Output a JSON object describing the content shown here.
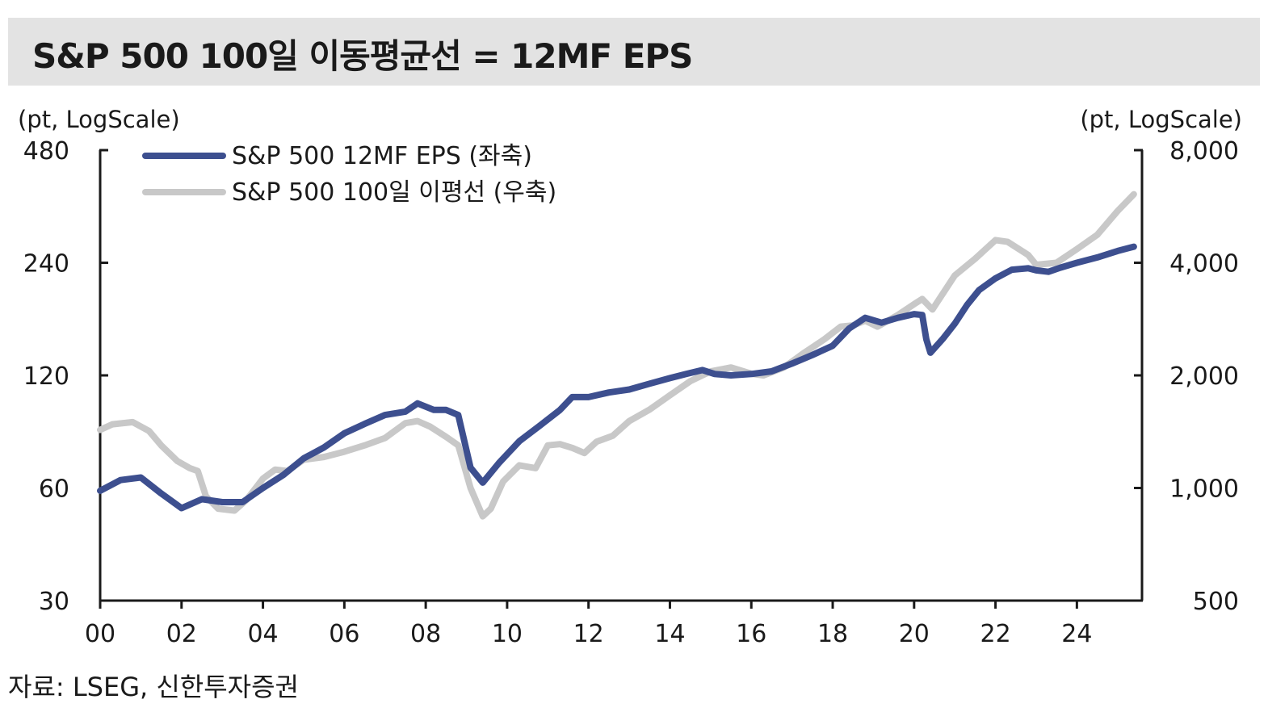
{
  "header": {
    "title": "S&P 500 100일 이동평균선 = 12MF EPS"
  },
  "footer": {
    "source": "자료: LSEG, 신한투자증권"
  },
  "colors": {
    "eps": "#3d4f8f",
    "ma": "#c8c8c8",
    "axis": "#1a1a1a",
    "title_bg": "#e3e3e3"
  },
  "chart_data": {
    "type": "line",
    "left_unit": "(pt, LogScale)",
    "right_unit": "(pt, LogScale)",
    "left_ticks": [
      "480",
      "240",
      "120",
      "60",
      "30"
    ],
    "left_tick_values": [
      480,
      240,
      120,
      60,
      30
    ],
    "right_ticks": [
      "8,000",
      "4,000",
      "2,000",
      "1,000",
      "500"
    ],
    "right_tick_values": [
      8000,
      4000,
      2000,
      1000,
      500
    ],
    "left_range": [
      30,
      480
    ],
    "right_range": [
      500,
      8000
    ],
    "scale": "log",
    "x_range": [
      2000,
      2025.6
    ],
    "x_ticks": [
      "00",
      "02",
      "04",
      "06",
      "08",
      "10",
      "12",
      "14",
      "16",
      "18",
      "20",
      "22",
      "24"
    ],
    "x_tick_values": [
      2000,
      2002,
      2004,
      2006,
      2008,
      2010,
      2012,
      2014,
      2016,
      2018,
      2020,
      2022,
      2024
    ],
    "series": [
      {
        "name": "S&P 500 12MF EPS (좌축)",
        "axis": "left",
        "x": [
          2000.0,
          2000.5,
          2001.0,
          2001.5,
          2002.0,
          2002.5,
          2003.0,
          2003.5,
          2004.0,
          2004.5,
          2005.0,
          2005.5,
          2006.0,
          2006.5,
          2007.0,
          2007.5,
          2007.8,
          2008.2,
          2008.5,
          2008.8,
          2009.1,
          2009.4,
          2009.8,
          2010.3,
          2010.8,
          2011.3,
          2011.6,
          2012.0,
          2012.5,
          2013.0,
          2013.5,
          2014.0,
          2014.4,
          2014.8,
          2015.1,
          2015.5,
          2016.0,
          2016.5,
          2017.0,
          2017.5,
          2018.0,
          2018.4,
          2018.8,
          2019.2,
          2019.6,
          2020.0,
          2020.2,
          2020.3,
          2020.4,
          2020.7,
          2021.0,
          2021.3,
          2021.6,
          2022.0,
          2022.4,
          2022.8,
          2023.0,
          2023.3,
          2023.6,
          2024.0,
          2024.5,
          2025.0,
          2025.4
        ],
        "values": [
          59,
          63,
          64,
          58,
          53,
          56,
          55,
          55,
          60,
          65,
          72,
          77,
          84,
          89,
          94,
          96,
          101,
          97,
          97,
          94,
          68,
          62,
          70,
          80,
          88,
          97,
          105,
          105,
          108,
          110,
          114,
          118,
          121,
          124,
          121,
          120,
          121,
          123,
          129,
          136,
          144,
          160,
          171,
          166,
          171,
          175,
          174,
          150,
          138,
          150,
          165,
          185,
          203,
          218,
          230,
          232,
          229,
          227,
          233,
          240,
          248,
          258,
          265
        ]
      },
      {
        "name": "S&P 500 100일 이평선 (우축)",
        "axis": "right",
        "x": [
          2000.0,
          2000.3,
          2000.8,
          2001.2,
          2001.5,
          2001.9,
          2002.2,
          2002.4,
          2002.6,
          2002.9,
          2003.3,
          2003.6,
          2004.0,
          2004.3,
          2004.6,
          2005.0,
          2005.5,
          2006.0,
          2006.5,
          2007.0,
          2007.5,
          2007.8,
          2008.1,
          2008.5,
          2008.8,
          2009.1,
          2009.4,
          2009.6,
          2009.9,
          2010.3,
          2010.7,
          2011.0,
          2011.3,
          2011.6,
          2011.9,
          2012.2,
          2012.6,
          2013.0,
          2013.5,
          2014.0,
          2014.5,
          2015.0,
          2015.5,
          2016.0,
          2016.3,
          2016.8,
          2017.3,
          2017.8,
          2018.2,
          2018.5,
          2018.8,
          2019.1,
          2019.6,
          2020.0,
          2020.2,
          2020.45,
          2020.7,
          2021.0,
          2021.5,
          2022.0,
          2022.3,
          2022.8,
          2023.0,
          2023.5,
          2024.0,
          2024.5,
          2025.0,
          2025.4
        ],
        "values": [
          1430,
          1480,
          1500,
          1420,
          1300,
          1180,
          1130,
          1110,
          950,
          880,
          870,
          930,
          1060,
          1120,
          1110,
          1190,
          1210,
          1250,
          1300,
          1360,
          1490,
          1510,
          1460,
          1370,
          1300,
          1000,
          840,
          880,
          1040,
          1150,
          1130,
          1300,
          1310,
          1280,
          1240,
          1330,
          1380,
          1510,
          1620,
          1770,
          1930,
          2050,
          2100,
          2020,
          2000,
          2100,
          2300,
          2500,
          2700,
          2720,
          2800,
          2700,
          2900,
          3100,
          3200,
          3000,
          3300,
          3700,
          4100,
          4600,
          4550,
          4200,
          3950,
          4000,
          4350,
          4750,
          5500,
          6100
        ]
      }
    ]
  }
}
